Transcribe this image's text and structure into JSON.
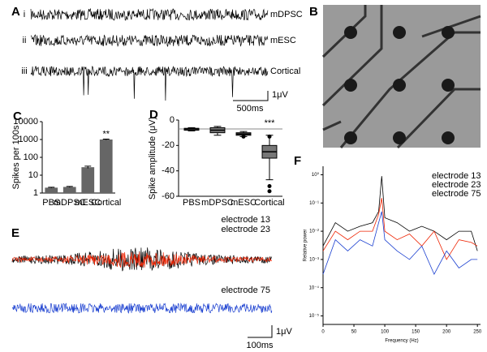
{
  "panel_a": {
    "label": "A",
    "rows": [
      {
        "numeral": "i",
        "name": "mDPSC"
      },
      {
        "numeral": "ii",
        "name": "mESC"
      },
      {
        "numeral": "iii",
        "name": "Cortical"
      }
    ],
    "scale_time": "500ms",
    "scale_amp": "1μV"
  },
  "panel_b": {
    "label": "B"
  },
  "panel_e": {
    "label": "E",
    "legend": [
      {
        "name": "electrode 13",
        "color": "#000000"
      },
      {
        "name": "electrode 23",
        "color": "#ee2200"
      },
      {
        "name": "electrode 75",
        "color": "#1a3fd0"
      }
    ],
    "scale_time": "100ms",
    "scale_amp": "1μV"
  },
  "chart_data": [
    {
      "type": "bar",
      "panel": "C",
      "ylabel": "Spikes per 100s",
      "categories": [
        "PBS",
        "mDPSC",
        "mESC",
        "Cortical"
      ],
      "values": [
        2,
        2.2,
        28,
        1000
      ],
      "errors": [
        0.1,
        0.15,
        4,
        60
      ],
      "significance": [
        null,
        null,
        null,
        "**"
      ],
      "color": "#666666",
      "log_scale": true,
      "ylim": [
        1,
        10000
      ],
      "yticks": [
        1,
        10,
        100,
        1000,
        10000
      ]
    },
    {
      "type": "box",
      "panel": "D",
      "ylabel": "Spike amplitude (μV)",
      "categories": [
        "PBS",
        "mDPSC",
        "mESC",
        "Cortical"
      ],
      "significance": [
        null,
        null,
        null,
        "***"
      ],
      "reference_line": -7,
      "boxes": [
        {
          "whislo": -8.5,
          "q1": -8,
          "med": -7,
          "q3": -6.5,
          "whishi": -6,
          "outliers": []
        },
        {
          "whislo": -12,
          "q1": -10,
          "med": -8,
          "q3": -6,
          "whishi": -5,
          "outliers": []
        },
        {
          "whislo": -13,
          "q1": -12,
          "med": -11,
          "q3": -10,
          "whishi": -9,
          "outliers": [
            -13
          ]
        },
        {
          "whislo": -47,
          "q1": -30,
          "med": -25,
          "q3": -20,
          "whishi": -12,
          "outliers": [
            -13,
            -52,
            -56
          ]
        }
      ],
      "color": "#777777",
      "ylim": [
        -60,
        0
      ],
      "yticks": [
        -60,
        -40,
        -20,
        0
      ]
    },
    {
      "type": "line",
      "panel": "F",
      "xlabel": "Frequency (Hz)",
      "ylabel": "Relative power",
      "log_scale": true,
      "x": [
        0,
        20,
        40,
        60,
        80,
        90,
        95,
        100,
        120,
        140,
        160,
        180,
        200,
        220,
        240,
        250
      ],
      "series": [
        {
          "name": "electrode 13",
          "color": "#000000",
          "values": [
            0.003,
            0.02,
            0.01,
            0.015,
            0.02,
            0.05,
            0.9,
            0.03,
            0.02,
            0.01,
            0.015,
            0.01,
            0.005,
            0.01,
            0.01,
            0.002
          ]
        },
        {
          "name": "electrode 23",
          "color": "#ee2200",
          "values": [
            0.002,
            0.01,
            0.005,
            0.01,
            0.01,
            0.04,
            0.15,
            0.01,
            0.005,
            0.008,
            0.003,
            0.01,
            0.001,
            0.005,
            0.004,
            0.003
          ]
        },
        {
          "name": "electrode 75",
          "color": "#1a3fd0",
          "values": [
            0.0003,
            0.005,
            0.002,
            0.005,
            0.003,
            0.02,
            0.05,
            0.005,
            0.002,
            0.001,
            0.003,
            0.0003,
            0.002,
            0.0005,
            0.001,
            0.001
          ]
        }
      ],
      "xlim": [
        0,
        255
      ],
      "xticks": [
        0,
        50,
        100,
        150,
        200,
        250
      ],
      "ylim": [
        5e-06,
        2
      ],
      "yticks": [
        {
          "value": 1,
          "label": "10⁰"
        },
        {
          "value": 0.1,
          "label": "10⁻¹"
        },
        {
          "value": 0.01,
          "label": "10⁻²"
        },
        {
          "value": 0.001,
          "label": "10⁻³"
        },
        {
          "value": 0.0001,
          "label": "10⁻⁴"
        },
        {
          "value": 1e-05,
          "label": "10⁻⁵"
        }
      ]
    }
  ]
}
